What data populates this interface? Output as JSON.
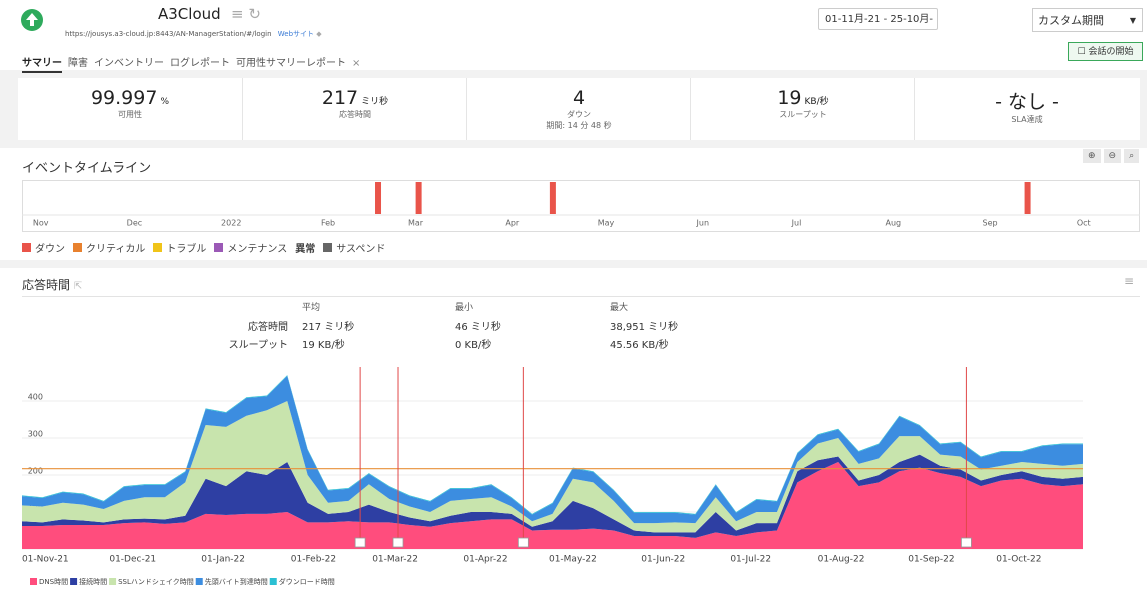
{
  "header": {
    "title": "A3Cloud",
    "url": "https://jousys.a3-cloud.jp:8443/AN-ManagerStation/#/login",
    "link": "Webサイト",
    "date_range": "01-11月-21 - 25-10月-",
    "period": "カスタム期間",
    "chat_button": "会話の開始"
  },
  "tabs": [
    "サマリー",
    "障害",
    "インベントリー",
    "ログレポート",
    "可用性サマリーレポート"
  ],
  "stats": [
    {
      "value": "99.997",
      "unit": "%",
      "label": "可用性"
    },
    {
      "value": "217",
      "unit": "ミリ秒",
      "label": "応答時間"
    },
    {
      "value": "4",
      "label": "ダウン",
      "sub": "期間: 14 分 48 秒"
    },
    {
      "value": "19",
      "unit": "KB/秒",
      "label": "スループット"
    },
    {
      "value": "- なし -",
      "label": "SLA達成"
    }
  ],
  "timeline": {
    "title": "イベントタイムライン",
    "xlim": [
      -6,
      352
    ],
    "xticks": [
      {
        "value": 0,
        "label": "Nov"
      },
      {
        "value": 30,
        "label": "Dec"
      },
      {
        "value": 61,
        "label": "2022"
      },
      {
        "value": 92,
        "label": "Feb"
      },
      {
        "value": 120,
        "label": "Mar"
      },
      {
        "value": 151,
        "label": "Apr"
      },
      {
        "value": 181,
        "label": "May"
      },
      {
        "value": 212,
        "label": "Jun"
      },
      {
        "value": 242,
        "label": "Jul"
      },
      {
        "value": 273,
        "label": "Aug"
      },
      {
        "value": 304,
        "label": "Sep"
      },
      {
        "value": 334,
        "label": "Oct"
      }
    ],
    "down_events": [
      108,
      121,
      164,
      316
    ],
    "down_color": "#e9544a",
    "legend": [
      {
        "name": "ダウン",
        "color": "#e9544a"
      },
      {
        "name": "クリティカル",
        "color": "#e8812e"
      },
      {
        "name": "トラブル",
        "color": "#f0c419"
      },
      {
        "name": "メンテナンス",
        "color": "#9b59b6"
      },
      {
        "name": "異常"
      },
      {
        "name": "サスペンド",
        "color": "#666666"
      }
    ]
  },
  "response": {
    "title": "応答時間",
    "summary": {
      "headers": [
        "平均",
        "最小",
        "最大"
      ],
      "rows": [
        [
          "応答時間",
          "217 ミリ秒",
          "46 ミリ秒",
          "38,951 ミリ秒"
        ],
        [
          "スループット",
          "19 KB/秒",
          "0 KB/秒",
          "45.56 KB/秒"
        ]
      ]
    }
  },
  "chart_data": {
    "type": "area",
    "stacked": true,
    "x": [
      -8,
      -1,
      6,
      13,
      20,
      27,
      34,
      41,
      48,
      55,
      62,
      69,
      76,
      83,
      90,
      97,
      104,
      111,
      118,
      125,
      132,
      139,
      146,
      153,
      160,
      167,
      174,
      181,
      188,
      195,
      202,
      209,
      216,
      223,
      230,
      237,
      244,
      251,
      258,
      265,
      272,
      279,
      286,
      293,
      300,
      307,
      314,
      321,
      328,
      335,
      342,
      349,
      356
    ],
    "xlim": [
      -8,
      356
    ],
    "xticks": [
      {
        "value": 0,
        "label": "01-Nov-21"
      },
      {
        "value": 30,
        "label": "01-Dec-21"
      },
      {
        "value": 61,
        "label": "01-Jan-22"
      },
      {
        "value": 92,
        "label": "01-Feb-22"
      },
      {
        "value": 120,
        "label": "01-Mar-22"
      },
      {
        "value": 151,
        "label": "01-Apr-22"
      },
      {
        "value": 181,
        "label": "01-May-22"
      },
      {
        "value": 212,
        "label": "01-Jun-22"
      },
      {
        "value": 242,
        "label": "01-Jul-22"
      },
      {
        "value": 273,
        "label": "01-Aug-22"
      },
      {
        "value": 304,
        "label": "01-Sep-22"
      },
      {
        "value": 334,
        "label": "01-Oct-22"
      }
    ],
    "ylim": [
      0,
      500
    ],
    "yticks": [
      0,
      100,
      200,
      300,
      400
    ],
    "grid": true,
    "average_line": 217,
    "average_color": "#e8913a",
    "down_events": [
      108,
      121,
      164,
      316
    ],
    "series": [
      {
        "name": "DNS時間",
        "color": "#ff4d7d",
        "values": [
          62,
          62,
          65,
          65,
          65,
          70,
          72,
          68,
          72,
          95,
          92,
          95,
          95,
          100,
          72,
          72,
          75,
          72,
          72,
          65,
          60,
          70,
          75,
          80,
          80,
          50,
          52,
          52,
          55,
          50,
          35,
          35,
          35,
          30,
          45,
          35,
          45,
          50,
          180,
          210,
          235,
          170,
          180,
          210,
          220,
          205,
          195,
          170,
          185,
          190,
          175,
          170,
          175
        ]
      },
      {
        "name": "接続時間",
        "color": "#2e3fa3",
        "values": [
          13,
          10,
          15,
          12,
          7,
          10,
          10,
          12,
          18,
          95,
          78,
          115,
          105,
          135,
          53,
          23,
          25,
          48,
          28,
          20,
          15,
          20,
          25,
          20,
          15,
          10,
          23,
          78,
          55,
          30,
          15,
          10,
          10,
          15,
          55,
          15,
          25,
          20,
          30,
          30,
          15,
          15,
          20,
          25,
          35,
          20,
          20,
          15,
          15,
          20,
          20,
          20,
          20
        ]
      },
      {
        "name": "SSLハンドシェイク時間",
        "color": "#c8e4ad",
        "values": [
          43,
          43,
          45,
          43,
          36,
          50,
          58,
          60,
          90,
          145,
          160,
          150,
          175,
          165,
          75,
          30,
          30,
          55,
          35,
          30,
          25,
          40,
          35,
          40,
          20,
          15,
          20,
          60,
          70,
          50,
          20,
          25,
          27,
          25,
          40,
          25,
          30,
          30,
          25,
          45,
          50,
          45,
          45,
          70,
          50,
          30,
          35,
          30,
          25,
          25,
          35,
          35,
          35
        ]
      },
      {
        "name": "先頭バイト到達時間",
        "color": "#3c8de0",
        "values": [
          25,
          23,
          28,
          28,
          20,
          38,
          33,
          33,
          28,
          43,
          38,
          48,
          38,
          68,
          68,
          33,
          33,
          28,
          33,
          28,
          28,
          33,
          28,
          33,
          23,
          18,
          28,
          28,
          28,
          28,
          28,
          28,
          26,
          23,
          33,
          23,
          33,
          28,
          23,
          23,
          23,
          33,
          38,
          53,
          28,
          28,
          38,
          33,
          38,
          28,
          48,
          58,
          53
        ]
      },
      {
        "name": "ダウンロード時間",
        "color": "#2bc0d3",
        "values": [
          2,
          2,
          2,
          2,
          2,
          2,
          2,
          2,
          2,
          2,
          2,
          2,
          2,
          2,
          2,
          2,
          2,
          2,
          2,
          2,
          2,
          2,
          2,
          2,
          2,
          2,
          2,
          2,
          2,
          2,
          2,
          2,
          2,
          2,
          2,
          2,
          2,
          2,
          2,
          2,
          2,
          2,
          2,
          2,
          2,
          2,
          2,
          2,
          2,
          2,
          2,
          2,
          2
        ]
      }
    ]
  }
}
